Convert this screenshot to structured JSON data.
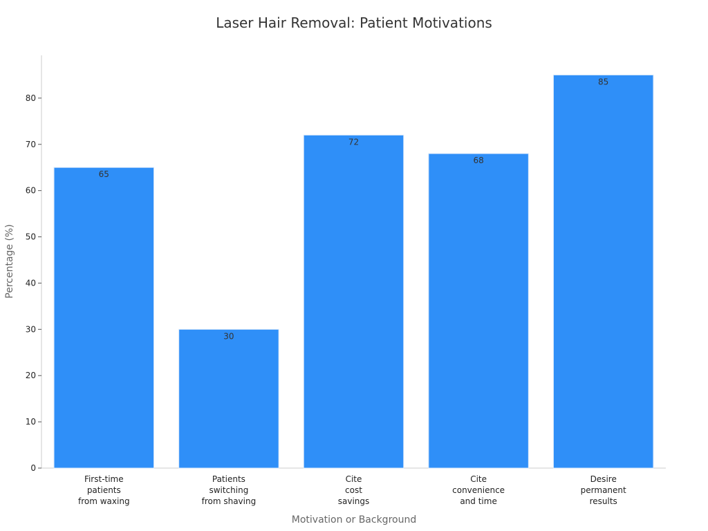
{
  "chart_data": {
    "type": "bar",
    "title": "Laser Hair Removal: Patient Motivations",
    "x_label": "Motivation or Background",
    "y_label": "Percentage (%)",
    "categories": [
      "First-time\npatients\nfrom waxing",
      "Patients\nswitching\nfrom shaving",
      "Cite\ncost\nsavings",
      "Cite\nconvenience\nand time",
      "Desire\npermanent\nresults"
    ],
    "values": [
      65,
      30,
      72,
      68,
      85
    ],
    "color": "#2f8ff8",
    "ylim": [
      0,
      89.25
    ],
    "yticks": [
      0,
      10,
      20,
      30,
      40,
      50,
      60,
      70,
      80
    ],
    "grid": false
  }
}
